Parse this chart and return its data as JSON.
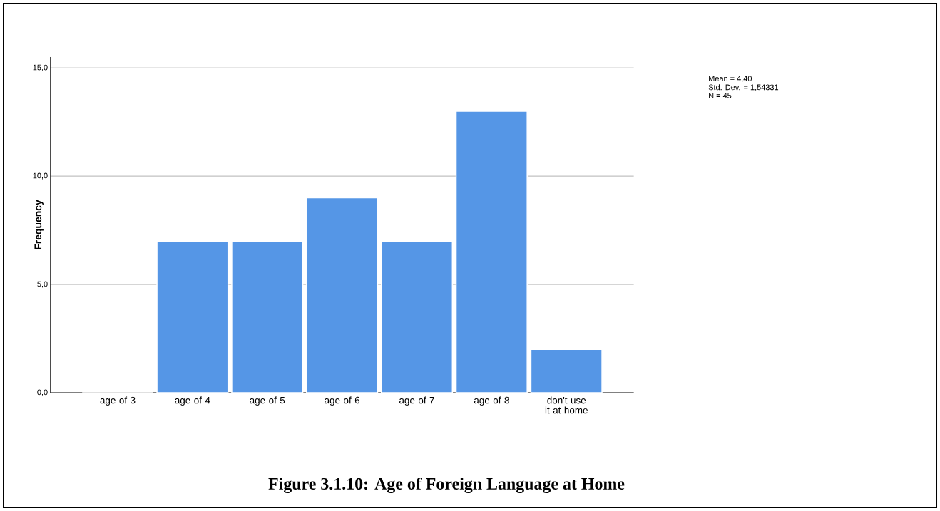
{
  "chart_data": {
    "type": "bar",
    "title": "Figure 3.1.10: Age of Foreign Language at Home",
    "ylabel": "Frequency",
    "categories": [
      "age of 3",
      "age of 4",
      "age of 5",
      "age of 6",
      "age of 7",
      "age of 8",
      "don't use it at home"
    ],
    "values": [
      0,
      7,
      7,
      9,
      7,
      13,
      2
    ],
    "color": "#5596e6",
    "ylim": [
      0,
      15.5
    ],
    "yticks": [
      {
        "value": 0,
        "label": "0,0"
      },
      {
        "value": 5,
        "label": "5,0"
      },
      {
        "value": 10,
        "label": "10,0"
      },
      {
        "value": 15,
        "label": "15,0"
      }
    ],
    "grid": "y",
    "annotations": [
      "Mean = 4,40",
      "Std. Dev. = 1,54331",
      "N = 45"
    ]
  }
}
